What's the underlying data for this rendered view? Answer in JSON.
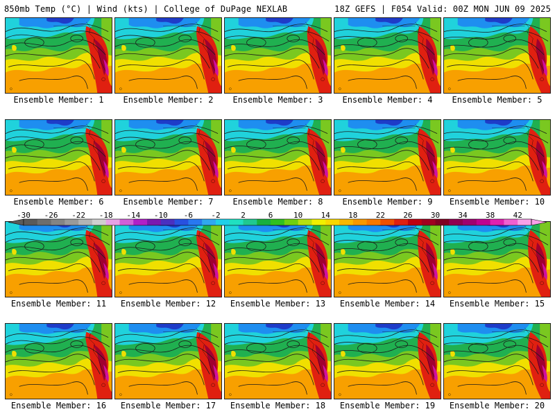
{
  "header": {
    "left": "850mb Temp (°C) | Wind (kts) | College of DuPage NEXLAB",
    "right": "18Z GEFS | F054 Valid: 00Z MON JUN 09 2025"
  },
  "members": [
    "Ensemble Member: 1",
    "Ensemble Member: 2",
    "Ensemble Member: 3",
    "Ensemble Member: 4",
    "Ensemble Member: 5",
    "Ensemble Member: 6",
    "Ensemble Member: 7",
    "Ensemble Member: 8",
    "Ensemble Member: 9",
    "Ensemble Member: 10",
    "Ensemble Member: 11",
    "Ensemble Member: 12",
    "Ensemble Member: 13",
    "Ensemble Member: 14",
    "Ensemble Member: 15",
    "Ensemble Member: 16",
    "Ensemble Member: 17",
    "Ensemble Member: 18",
    "Ensemble Member: 19",
    "Ensemble Member: 20"
  ],
  "colorbar": {
    "ticks": [
      "-30",
      "-26",
      "-22",
      "-18",
      "-14",
      "-10",
      "-6",
      "-2",
      "2",
      "6",
      "10",
      "14",
      "18",
      "22",
      "26",
      "30",
      "34",
      "38",
      "42"
    ],
    "colors": [
      "#5a5a5a",
      "#6e6e6e",
      "#848484",
      "#9a9a9a",
      "#b4b4b4",
      "#cfcfcf",
      "#e6a2e6",
      "#d060d8",
      "#b020c8",
      "#7a18b0",
      "#4a30c0",
      "#2850e0",
      "#2878f0",
      "#30a8f0",
      "#20d0e8",
      "#20e0c0",
      "#20c890",
      "#18b040",
      "#30c020",
      "#70d010",
      "#b8e010",
      "#f0f000",
      "#f8d800",
      "#f8b800",
      "#f89800",
      "#f87800",
      "#f05000",
      "#e02010",
      "#c00010",
      "#a00020",
      "#800020",
      "#900050",
      "#a00070",
      "#c00090",
      "#e020b0",
      "#f060d0",
      "#f8a0e8"
    ]
  },
  "map_colors": {
    "cold_deep": "#1e3cc8",
    "cold": "#1e8ef0",
    "cool": "#20d2dc",
    "mild": "#20b050",
    "warm_green": "#7ac820",
    "yellow": "#f0e000",
    "orange": "#f8a000",
    "hot": "#e02010",
    "very_hot": "#a00030",
    "extreme": "#d010a0"
  }
}
